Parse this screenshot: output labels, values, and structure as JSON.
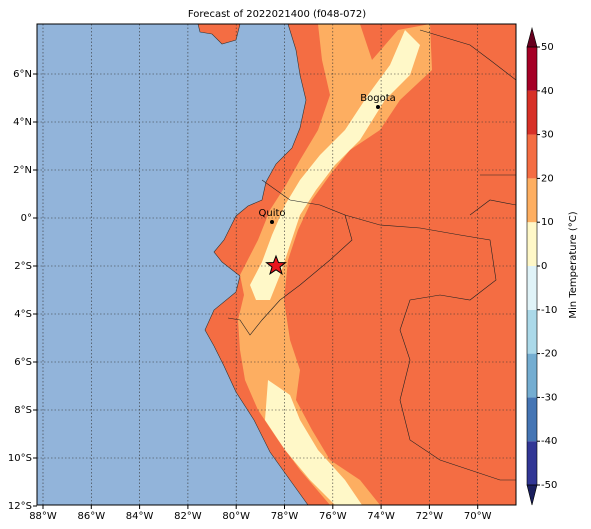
{
  "map": {
    "title": "Forecast of 2022021400 (f048-072)",
    "lon_ticks": [
      {
        "value": -88,
        "label": "88°W"
      },
      {
        "value": -86,
        "label": "86°W"
      },
      {
        "value": -84,
        "label": "84°W"
      },
      {
        "value": -82,
        "label": "82°W"
      },
      {
        "value": -80,
        "label": "80°W"
      },
      {
        "value": -78,
        "label": "78°W"
      },
      {
        "value": -76,
        "label": "76°W"
      },
      {
        "value": -74,
        "label": "74°W"
      },
      {
        "value": -72,
        "label": "72°W"
      },
      {
        "value": -70,
        "label": "70°W"
      }
    ],
    "lat_ticks": [
      {
        "value": 6,
        "label": "6°N"
      },
      {
        "value": 4,
        "label": "4°N"
      },
      {
        "value": 2,
        "label": "2°N"
      },
      {
        "value": 0,
        "label": "0°"
      },
      {
        "value": -2,
        "label": "2°S"
      },
      {
        "value": -4,
        "label": "4°S"
      },
      {
        "value": -6,
        "label": "6°S"
      },
      {
        "value": -8,
        "label": "8°S"
      },
      {
        "value": -10,
        "label": "10°S"
      },
      {
        "value": -12,
        "label": "12°S"
      }
    ],
    "cities": [
      "Bogota",
      "Quito"
    ],
    "colorbar": {
      "label": "Min Temperature (°C)",
      "ticks": [
        -50,
        -40,
        -30,
        -20,
        -10,
        0,
        10,
        20,
        30,
        40,
        50
      ],
      "colors": [
        "#313695",
        "#4575b4",
        "#74add1",
        "#abd9e9",
        "#e0f3f8",
        "#fff8c8",
        "#fdae61",
        "#f46d43",
        "#d73027",
        "#a50026"
      ],
      "extend_colors": [
        "#1a1f5e",
        "#67001f"
      ]
    }
  }
}
